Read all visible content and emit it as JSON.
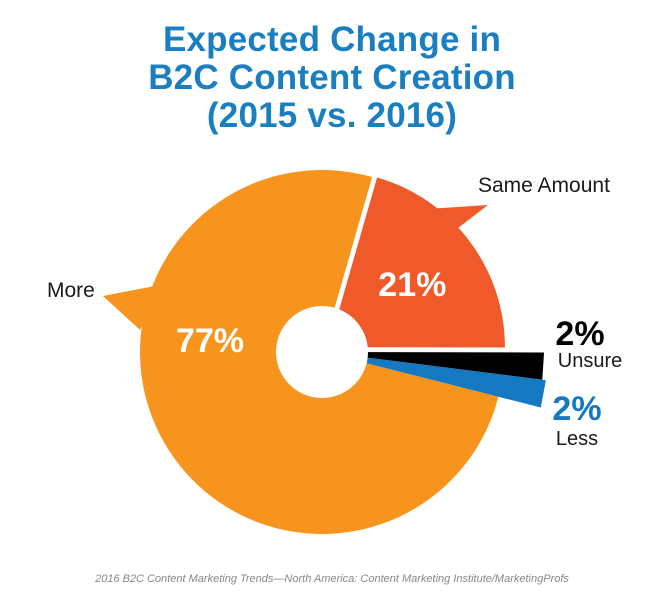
{
  "title": {
    "line1": "Expected Change in",
    "line2": "B2C Content Creation",
    "line3": "(2015 vs. 2016)"
  },
  "footer": "2016 B2C Content Marketing Trends—North America: Content Marketing Institute/MarketingProfs",
  "chart_data": {
    "type": "pie",
    "title": "Expected Change in B2C Content Creation (2015 vs. 2016)",
    "slices": [
      {
        "label": "Same Amount",
        "value": 21,
        "display": "21%",
        "color": "#f05a2a"
      },
      {
        "label": "Unsure",
        "value": 2,
        "display": "2%",
        "color": "#000000"
      },
      {
        "label": "Less",
        "value": 2,
        "display": "2%",
        "color": "#1479c0"
      },
      {
        "label": "More",
        "value": 77,
        "display": "77%",
        "color": "#f7941d"
      }
    ],
    "donut_hole": true
  },
  "colors": {
    "title": "#1a7fc1",
    "less_label": "#1479c0",
    "inside_label": "#ffffff"
  }
}
